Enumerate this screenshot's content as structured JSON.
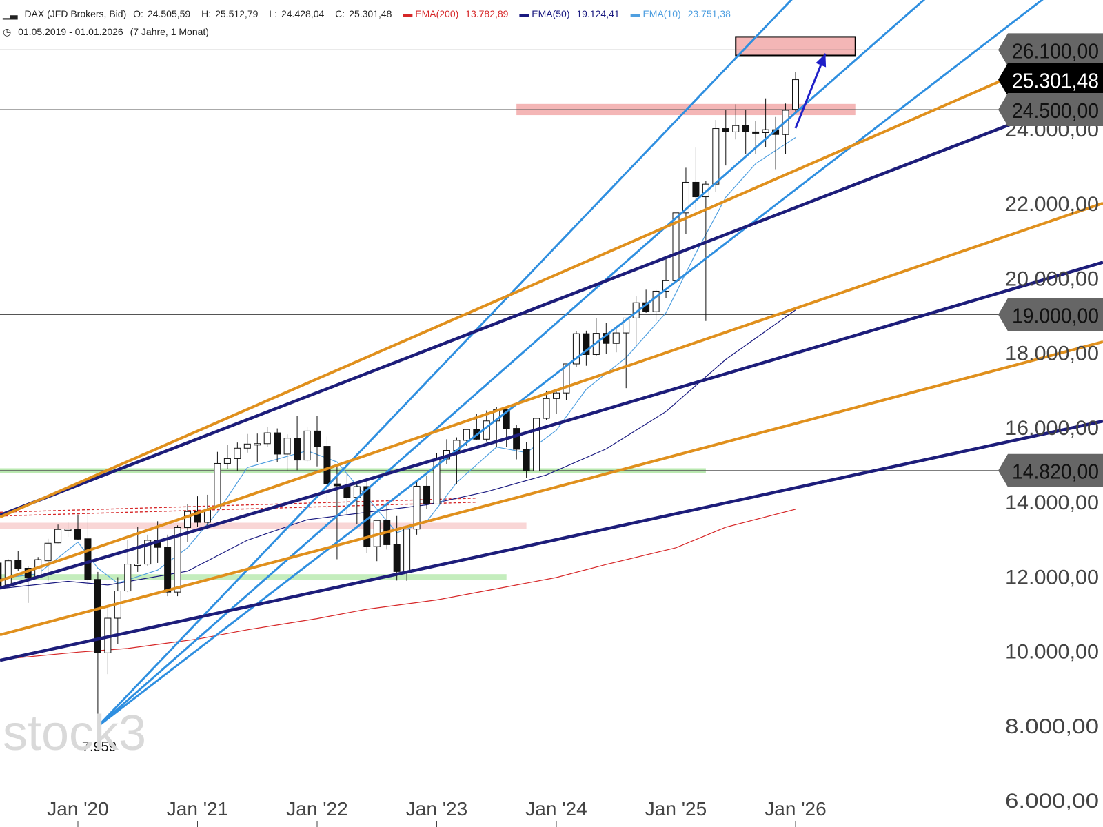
{
  "header": {
    "symbol": "DAX (JFD Brokers, Bid)",
    "ohlc": {
      "o_label": "O:",
      "o": "24.505,59",
      "h_label": "H:",
      "h": "25.512,79",
      "l_label": "L:",
      "l": "24.428,04",
      "c_label": "C:",
      "c": "25.301,48"
    },
    "ema200": {
      "label": "EMA(200)",
      "value": "13.782,89",
      "color": "#d62728"
    },
    "ema50": {
      "label": "EMA(50)",
      "value": "19.124,41",
      "color": "#1a1a80"
    },
    "ema10": {
      "label": "EMA(10)",
      "value": "23.751,38",
      "color": "#4f9fe0"
    },
    "range": "01.05.2019 - 01.01.2026",
    "range_detail": "(7 Jahre, 1 Monat)"
  },
  "watermark": "stock3",
  "chart_data": {
    "type": "candlestick",
    "y_axis": {
      "min": 6000,
      "max": 27000,
      "ticks": [
        6000,
        8000,
        10000,
        12000,
        14000,
        16000,
        18000,
        20000,
        22000,
        24000
      ],
      "tick_labels": [
        "6.000,00",
        "8.000,00",
        "10.000,00",
        "12.000,00",
        "14.000,00",
        "16.000,00",
        "18.000,00",
        "20.000,00",
        "22.000,00",
        "24.000,00"
      ]
    },
    "x_axis": {
      "labels": [
        {
          "date": "2020-01",
          "text": "Jan '20"
        },
        {
          "date": "2021-01",
          "text": "Jan '21"
        },
        {
          "date": "2022-01",
          "text": "Jan '22"
        },
        {
          "date": "2023-01",
          "text": "Jan '23"
        },
        {
          "date": "2024-01",
          "text": "Jan '24"
        },
        {
          "date": "2025-01",
          "text": "Jan '25"
        },
        {
          "date": "2026-01",
          "text": "Jan '26"
        }
      ]
    },
    "price_tags": [
      {
        "value": 26100,
        "label": "26.100,00",
        "style": "grey"
      },
      {
        "value": 25301.48,
        "label": "25.301,48",
        "style": "black"
      },
      {
        "value": 24500,
        "label": "24.500,00",
        "style": "grey"
      },
      {
        "value": 19000,
        "label": "19.000,00",
        "style": "grey"
      },
      {
        "value": 14820,
        "label": "14.820,00",
        "style": "grey"
      }
    ],
    "low_annotation": {
      "date": "2020-03",
      "value": 7959,
      "label": "7.959"
    },
    "candles": [
      {
        "d": "2019-05",
        "o": 12340,
        "h": 12360,
        "l": 11620,
        "c": 11730
      },
      {
        "d": "2019-06",
        "o": 11750,
        "h": 12440,
        "l": 11720,
        "c": 12400
      },
      {
        "d": "2019-07",
        "o": 12420,
        "h": 12660,
        "l": 12120,
        "c": 12190
      },
      {
        "d": "2019-08",
        "o": 12200,
        "h": 12260,
        "l": 11270,
        "c": 11940
      },
      {
        "d": "2019-09",
        "o": 11950,
        "h": 12500,
        "l": 11930,
        "c": 12430
      },
      {
        "d": "2019-10",
        "o": 12400,
        "h": 12990,
        "l": 11850,
        "c": 12870
      },
      {
        "d": "2019-11",
        "o": 12880,
        "h": 13370,
        "l": 12870,
        "c": 13240
      },
      {
        "d": "2019-12",
        "o": 13240,
        "h": 13430,
        "l": 13040,
        "c": 13250
      },
      {
        "d": "2020-01",
        "o": 13250,
        "h": 13640,
        "l": 12950,
        "c": 12980
      },
      {
        "d": "2020-02",
        "o": 12990,
        "h": 13800,
        "l": 11720,
        "c": 11890
      },
      {
        "d": "2020-03",
        "o": 11900,
        "h": 12100,
        "l": 7959,
        "c": 9930
      },
      {
        "d": "2020-04",
        "o": 9930,
        "h": 11220,
        "l": 9360,
        "c": 10860
      },
      {
        "d": "2020-05",
        "o": 10860,
        "h": 11960,
        "l": 10160,
        "c": 11590
      },
      {
        "d": "2020-06",
        "o": 11590,
        "h": 12950,
        "l": 11560,
        "c": 12310
      },
      {
        "d": "2020-07",
        "o": 12310,
        "h": 13310,
        "l": 12100,
        "c": 12310
      },
      {
        "d": "2020-08",
        "o": 12310,
        "h": 13100,
        "l": 12250,
        "c": 12950
      },
      {
        "d": "2020-09",
        "o": 12950,
        "h": 13460,
        "l": 12340,
        "c": 12760
      },
      {
        "d": "2020-10",
        "o": 12760,
        "h": 13100,
        "l": 11450,
        "c": 11560
      },
      {
        "d": "2020-11",
        "o": 11560,
        "h": 13350,
        "l": 11450,
        "c": 13290
      },
      {
        "d": "2020-12",
        "o": 13290,
        "h": 13920,
        "l": 12900,
        "c": 13720
      },
      {
        "d": "2021-01",
        "o": 13720,
        "h": 14130,
        "l": 13310,
        "c": 13430
      },
      {
        "d": "2021-02",
        "o": 13430,
        "h": 14170,
        "l": 13310,
        "c": 13790
      },
      {
        "d": "2021-03",
        "o": 13790,
        "h": 15320,
        "l": 13810,
        "c": 15010
      },
      {
        "d": "2021-04",
        "o": 15010,
        "h": 15500,
        "l": 14860,
        "c": 15140
      },
      {
        "d": "2021-05",
        "o": 15140,
        "h": 15570,
        "l": 14820,
        "c": 15420
      },
      {
        "d": "2021-06",
        "o": 15420,
        "h": 15800,
        "l": 15300,
        "c": 15530
      },
      {
        "d": "2021-07",
        "o": 15530,
        "h": 15810,
        "l": 15050,
        "c": 15540
      },
      {
        "d": "2021-08",
        "o": 15540,
        "h": 15980,
        "l": 15450,
        "c": 15830
      },
      {
        "d": "2021-09",
        "o": 15830,
        "h": 15950,
        "l": 15050,
        "c": 15260
      },
      {
        "d": "2021-10",
        "o": 15260,
        "h": 15790,
        "l": 14820,
        "c": 15690
      },
      {
        "d": "2021-11",
        "o": 15690,
        "h": 16290,
        "l": 14830,
        "c": 15100
      },
      {
        "d": "2021-12",
        "o": 15100,
        "h": 15980,
        "l": 15060,
        "c": 15880
      },
      {
        "d": "2022-01",
        "o": 15880,
        "h": 16290,
        "l": 14930,
        "c": 15470
      },
      {
        "d": "2022-02",
        "o": 15470,
        "h": 15730,
        "l": 13800,
        "c": 14460
      },
      {
        "d": "2022-03",
        "o": 14460,
        "h": 14930,
        "l": 12440,
        "c": 14410
      },
      {
        "d": "2022-04",
        "o": 14410,
        "h": 14750,
        "l": 13620,
        "c": 14100
      },
      {
        "d": "2022-05",
        "o": 14100,
        "h": 14460,
        "l": 13380,
        "c": 14390
      },
      {
        "d": "2022-06",
        "o": 14390,
        "h": 14600,
        "l": 12600,
        "c": 12780
      },
      {
        "d": "2022-07",
        "o": 12780,
        "h": 13400,
        "l": 12390,
        "c": 13480
      },
      {
        "d": "2022-08",
        "o": 13480,
        "h": 13950,
        "l": 12700,
        "c": 12830
      },
      {
        "d": "2022-09",
        "o": 12830,
        "h": 13600,
        "l": 11870,
        "c": 12110
      },
      {
        "d": "2022-10",
        "o": 12110,
        "h": 13260,
        "l": 11860,
        "c": 13250
      },
      {
        "d": "2022-11",
        "o": 13250,
        "h": 14550,
        "l": 13100,
        "c": 14400
      },
      {
        "d": "2022-12",
        "o": 14400,
        "h": 14670,
        "l": 13790,
        "c": 13920
      },
      {
        "d": "2023-01",
        "o": 13920,
        "h": 15290,
        "l": 13910,
        "c": 15130
      },
      {
        "d": "2023-02",
        "o": 15130,
        "h": 15660,
        "l": 15000,
        "c": 15360
      },
      {
        "d": "2023-03",
        "o": 15360,
        "h": 15710,
        "l": 14460,
        "c": 15630
      },
      {
        "d": "2023-04",
        "o": 15630,
        "h": 15920,
        "l": 15480,
        "c": 15920
      },
      {
        "d": "2023-05",
        "o": 15920,
        "h": 16330,
        "l": 15630,
        "c": 15660
      },
      {
        "d": "2023-06",
        "o": 15660,
        "h": 16430,
        "l": 15600,
        "c": 16150
      },
      {
        "d": "2023-07",
        "o": 16150,
        "h": 16530,
        "l": 15450,
        "c": 16450
      },
      {
        "d": "2023-08",
        "o": 16450,
        "h": 16530,
        "l": 15460,
        "c": 15950
      },
      {
        "d": "2023-09",
        "o": 15950,
        "h": 16040,
        "l": 15120,
        "c": 15390
      },
      {
        "d": "2023-10",
        "o": 15390,
        "h": 15580,
        "l": 14630,
        "c": 14810
      },
      {
        "d": "2023-11",
        "o": 14810,
        "h": 16200,
        "l": 14800,
        "c": 16220
      },
      {
        "d": "2023-12",
        "o": 16220,
        "h": 16960,
        "l": 16180,
        "c": 16750
      },
      {
        "d": "2024-01",
        "o": 16750,
        "h": 17000,
        "l": 16350,
        "c": 16900
      },
      {
        "d": "2024-02",
        "o": 16900,
        "h": 17500,
        "l": 16700,
        "c": 17680
      },
      {
        "d": "2024-03",
        "o": 17680,
        "h": 18550,
        "l": 17600,
        "c": 18490
      },
      {
        "d": "2024-04",
        "o": 18490,
        "h": 18570,
        "l": 17630,
        "c": 17930
      },
      {
        "d": "2024-05",
        "o": 17930,
        "h": 18900,
        "l": 17900,
        "c": 18500
      },
      {
        "d": "2024-06",
        "o": 18500,
        "h": 18780,
        "l": 17950,
        "c": 18230
      },
      {
        "d": "2024-07",
        "o": 18230,
        "h": 18700,
        "l": 17990,
        "c": 18510
      },
      {
        "d": "2024-08",
        "o": 18510,
        "h": 18900,
        "l": 17030,
        "c": 18910
      },
      {
        "d": "2024-09",
        "o": 18910,
        "h": 19490,
        "l": 18200,
        "c": 19320
      },
      {
        "d": "2024-10",
        "o": 19320,
        "h": 19670,
        "l": 19050,
        "c": 19080
      },
      {
        "d": "2024-11",
        "o": 19080,
        "h": 19660,
        "l": 18830,
        "c": 19630
      },
      {
        "d": "2024-12",
        "o": 19630,
        "h": 20520,
        "l": 19440,
        "c": 19910
      },
      {
        "d": "2025-01",
        "o": 19910,
        "h": 21800,
        "l": 19810,
        "c": 21730
      },
      {
        "d": "2025-02",
        "o": 21730,
        "h": 22940,
        "l": 21160,
        "c": 22550
      },
      {
        "d": "2025-03",
        "o": 22550,
        "h": 23480,
        "l": 21810,
        "c": 22160
      },
      {
        "d": "2025-04",
        "o": 22160,
        "h": 22580,
        "l": 18830,
        "c": 22500
      },
      {
        "d": "2025-05",
        "o": 22500,
        "h": 24220,
        "l": 22300,
        "c": 23990
      },
      {
        "d": "2025-06",
        "o": 23990,
        "h": 24480,
        "l": 23000,
        "c": 23900
      },
      {
        "d": "2025-07",
        "o": 23900,
        "h": 24640,
        "l": 23700,
        "c": 24070
      },
      {
        "d": "2025-08",
        "o": 24070,
        "h": 24500,
        "l": 23300,
        "c": 23900
      },
      {
        "d": "2025-09",
        "o": 23900,
        "h": 24200,
        "l": 23300,
        "c": 23880
      },
      {
        "d": "2025-10",
        "o": 23880,
        "h": 24800,
        "l": 23500,
        "c": 23960
      },
      {
        "d": "2025-11",
        "o": 23960,
        "h": 24300,
        "l": 22900,
        "c": 23830
      },
      {
        "d": "2025-12",
        "o": 23830,
        "h": 24660,
        "l": 23300,
        "c": 24480
      },
      {
        "d": "2026-01",
        "o": 24505.59,
        "h": 25512.79,
        "l": 24428.04,
        "c": 25301.48
      }
    ],
    "ema10": [
      [
        "2019-05",
        11920
      ],
      [
        "2019-09",
        12050
      ],
      [
        "2020-01",
        12900
      ],
      [
        "2020-03",
        12200
      ],
      [
        "2020-05",
        11800
      ],
      [
        "2020-09",
        12150
      ],
      [
        "2020-12",
        12750
      ],
      [
        "2021-03",
        13700
      ],
      [
        "2021-06",
        14900
      ],
      [
        "2021-12",
        15350
      ],
      [
        "2022-03",
        15050
      ],
      [
        "2022-06",
        14100
      ],
      [
        "2022-09",
        13150
      ],
      [
        "2022-12",
        13450
      ],
      [
        "2023-03",
        14500
      ],
      [
        "2023-07",
        15450
      ],
      [
        "2023-10",
        15300
      ],
      [
        "2024-01",
        15900
      ],
      [
        "2024-04",
        17000
      ],
      [
        "2024-08",
        17850
      ],
      [
        "2024-12",
        19050
      ],
      [
        "2025-03",
        20650
      ],
      [
        "2025-06",
        22150
      ],
      [
        "2025-09",
        23050
      ],
      [
        "2026-01",
        23751
      ]
    ],
    "ema50": [
      [
        "2019-05",
        11650
      ],
      [
        "2019-12",
        11850
      ],
      [
        "2020-04",
        11750
      ],
      [
        "2020-12",
        12120
      ],
      [
        "2021-06",
        12950
      ],
      [
        "2021-12",
        13500
      ],
      [
        "2022-06",
        13700
      ],
      [
        "2022-12",
        13900
      ],
      [
        "2023-06",
        14250
      ],
      [
        "2023-12",
        14700
      ],
      [
        "2024-06",
        15400
      ],
      [
        "2024-12",
        16400
      ],
      [
        "2025-06",
        17800
      ],
      [
        "2026-01",
        19124
      ]
    ],
    "ema200": [
      [
        "2019-05",
        9750
      ],
      [
        "2020-01",
        9950
      ],
      [
        "2020-06",
        10050
      ],
      [
        "2021-01",
        10300
      ],
      [
        "2021-06",
        10550
      ],
      [
        "2022-01",
        10850
      ],
      [
        "2022-06",
        11100
      ],
      [
        "2023-01",
        11350
      ],
      [
        "2023-06",
        11600
      ],
      [
        "2024-01",
        11950
      ],
      [
        "2024-06",
        12300
      ],
      [
        "2025-01",
        12750
      ],
      [
        "2025-06",
        13300
      ],
      [
        "2026-01",
        13783
      ]
    ],
    "horizontal_lines": [
      26100,
      24500,
      19000,
      14820
    ],
    "zones": [
      {
        "name": "target-zone",
        "from": "2025-07",
        "to": "2026-07",
        "low": 25950,
        "high": 26450,
        "fill": "#f4b6b6",
        "stroke": "#000"
      },
      {
        "name": "resistance-zone",
        "from": "2023-09",
        "to": "2026-07",
        "low": 24350,
        "high": 24650,
        "fill": "#f4b6b6"
      },
      {
        "name": "pink-band-2021",
        "from": "2019-05",
        "to": "2023-10",
        "low": 13260,
        "high": 13420,
        "fill": "#f9d6d6"
      },
      {
        "name": "green-band-14800",
        "from": "2019-05",
        "to": "2025-04",
        "low": 14760,
        "high": 14880,
        "fill": "#b9e8b0"
      },
      {
        "name": "green-band-12000",
        "from": "2019-05",
        "to": "2023-08",
        "low": 11880,
        "high": 12040,
        "fill": "#c4edbd"
      }
    ],
    "dashed_lines": [
      {
        "from": [
          "2019-05",
          13600
        ],
        "to": [
          "2023-05",
          13970
        ]
      },
      {
        "from": [
          "2019-05",
          13700
        ],
        "to": [
          "2023-05",
          14080
        ]
      }
    ],
    "trendlines": [
      {
        "name": "lightblue-steep",
        "color": "#2f8fe0",
        "width": 3,
        "from": [
          "2020-03",
          7959
        ],
        "to": [
          "2025-11",
          27000
        ]
      },
      {
        "name": "lightblue-mid",
        "color": "#2f8fe0",
        "width": 3,
        "from": [
          "2020-03",
          7959
        ],
        "to": [
          "2026-12",
          27000
        ]
      },
      {
        "name": "lightblue-low",
        "color": "#2f8fe0",
        "width": 3,
        "from": [
          "2020-03",
          7959
        ],
        "to": [
          "2026-09",
          24000
        ]
      },
      {
        "name": "navy-top",
        "color": "#1d1d7a",
        "width": 4.5,
        "from": [
          "2019-05",
          13600
        ],
        "to": [
          "2026-09",
          22700
        ]
      },
      {
        "name": "navy-mid",
        "color": "#1d1d7a",
        "width": 4.5,
        "from": [
          "2019-05",
          11650
        ],
        "to": [
          "2026-09",
          18600
        ]
      },
      {
        "name": "navy-bottom",
        "color": "#1d1d7a",
        "width": 4.5,
        "from": [
          "2019-05",
          9720
        ],
        "to": [
          "2026-09",
          14820
        ]
      },
      {
        "name": "orange-top",
        "color": "#e0901d",
        "width": 4,
        "from": [
          "2019-05",
          13550
        ],
        "to": [
          "2026-09",
          23800
        ]
      },
      {
        "name": "orange-mid",
        "color": "#e0901d",
        "width": 4,
        "from": [
          "2019-05",
          11850
        ],
        "to": [
          "2026-09",
          19900
        ]
      },
      {
        "name": "orange-bottom",
        "color": "#e0901d",
        "width": 4,
        "from": [
          "2019-05",
          10400
        ],
        "to": [
          "2026-09",
          16650
        ]
      }
    ],
    "arrow": {
      "color": "#1f1fc8",
      "from": [
        "2026-01",
        24000
      ],
      "to": [
        "2026-04",
        26000
      ]
    }
  }
}
